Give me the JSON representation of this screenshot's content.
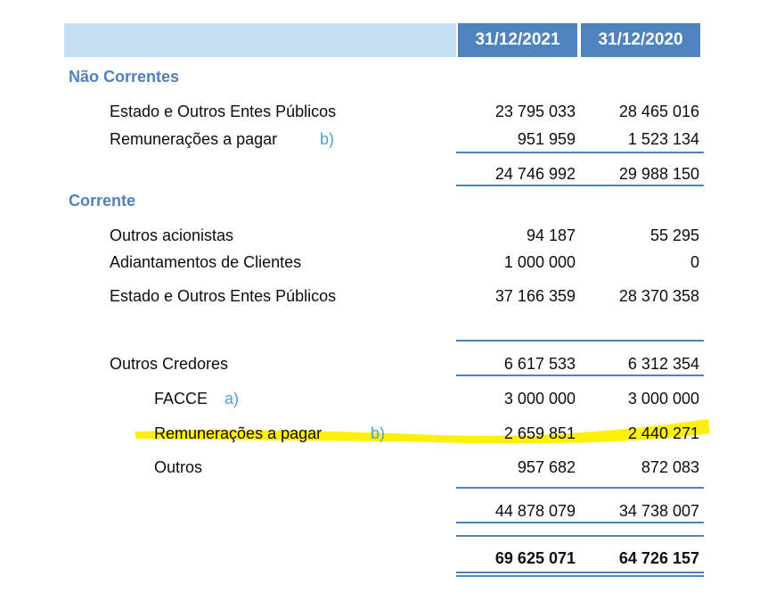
{
  "header": {
    "col1": "31/12/2021",
    "col2": "31/12/2020"
  },
  "colors": {
    "header_light": "#c5e0f3",
    "header_dark": "#4f83c0",
    "section_text": "#4f82bd",
    "note_blue": "#4aa3d8",
    "highlight": "#ffee00"
  },
  "nao_correntes": {
    "title": "Não Correntes",
    "rows": [
      {
        "label": "Estado e Outros Entes Públicos",
        "note": "",
        "v2021": "23 795 033",
        "v2020": "28 465 016"
      },
      {
        "label": "Remunerações a pagar",
        "note": "b)",
        "v2021": "951 959",
        "v2020": "1 523 134"
      }
    ],
    "subtotal": {
      "v2021": "24 746 992",
      "v2020": "29 988 150"
    }
  },
  "corrente": {
    "title": "Corrente",
    "rows": [
      {
        "label": "Outros acionistas",
        "note": "",
        "v2021": "94 187",
        "v2020": "55 295"
      },
      {
        "label": "Adiantamentos de Clientes",
        "note": "",
        "v2021": "1 000 000",
        "v2020": "0"
      },
      {
        "label": "Estado e Outros Entes Públicos",
        "note": "",
        "v2021": "37 166 359",
        "v2020": "28 370 358"
      },
      {
        "label": "Outros Credores",
        "note": "",
        "v2021": "6 617 533",
        "v2020": "6 312 354"
      },
      {
        "label": "FACCE",
        "note": "a)",
        "v2021": "3 000 000",
        "v2020": "3 000 000"
      },
      {
        "label": "Remunerações a pagar",
        "note": "b)",
        "v2021": "2 659 851",
        "v2020": "2 440 271"
      },
      {
        "label": "Outros",
        "note": "",
        "v2021": "957 682",
        "v2020": "872 083"
      }
    ],
    "subtotal": {
      "v2021": "44 878 079",
      "v2020": "34 738 007"
    }
  },
  "total": {
    "v2021": "69 625 071",
    "v2020": "64 726 157"
  }
}
